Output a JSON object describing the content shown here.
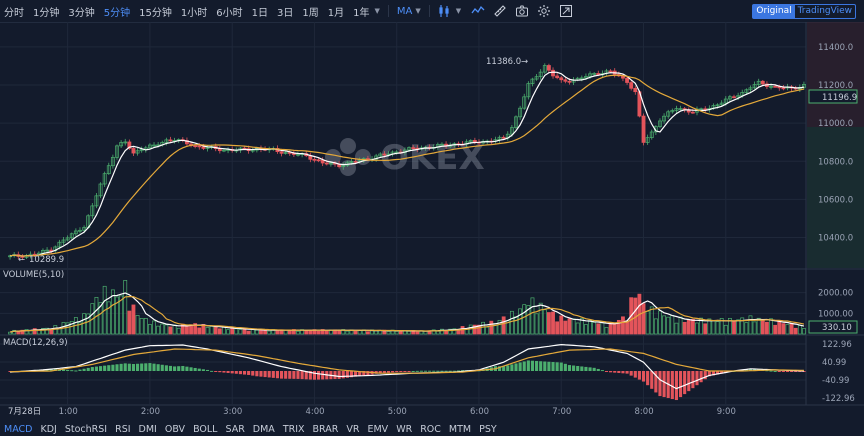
{
  "toolbar": {
    "timeframes": [
      "分时",
      "1分钟",
      "3分钟",
      "5分钟",
      "15分钟",
      "1小时",
      "6小时",
      "1日",
      "3日",
      "1周",
      "1月",
      "1年"
    ],
    "active_timeframe": "5分钟",
    "indicator_select": "MA",
    "view_options": [
      "Original",
      "TradingView"
    ],
    "active_view": "Original",
    "icons": [
      "chart-type-icon",
      "line-draw-icon",
      "ruler-icon",
      "camera-icon",
      "settings-icon",
      "fullscreen-icon"
    ]
  },
  "watermark": "OKEX",
  "panes": {
    "volume_label": "VOLUME(5,10)",
    "macd_label": "MACD(12,26,9)"
  },
  "annotations": {
    "high": "11386.0",
    "low": "10289.9",
    "last_price": "11196.9",
    "last_volume": "330.10"
  },
  "colors": {
    "up": "#4caf6e",
    "down": "#e3545b",
    "ma5": "#ffffff",
    "ma10": "#e4a93a",
    "accent": "#4d8ef7",
    "background": "#131b2c",
    "grid": "#1f283a"
  },
  "date_label": "7月28日",
  "bottom_indicators": [
    "MACD",
    "KDJ",
    "StochRSI",
    "RSI",
    "DMI",
    "OBV",
    "BOLL",
    "SAR",
    "DMA",
    "TRIX",
    "BRAR",
    "VR",
    "EMV",
    "WR",
    "ROC",
    "MTM",
    "PSY"
  ],
  "active_bottom_indicator": "MACD",
  "chart_data": {
    "type": "candlestick",
    "x_ticks": [
      "1:00",
      "2:00",
      "3:00",
      "4:00",
      "5:00",
      "6:00",
      "7:00",
      "8:00",
      "9:00"
    ],
    "price_axis": [
      11400.0,
      11200.0,
      11000.0,
      10800.0,
      10600.0,
      10400.0
    ],
    "price_range": [
      10240,
      11520
    ],
    "volume_axis": [
      2000.0,
      1000.0
    ],
    "volume_range": [
      0,
      3000
    ],
    "macd_axis": [
      122.96,
      40.99,
      -40.99,
      -122.96
    ],
    "macd_range": [
      -150,
      150
    ],
    "close_anchors": [
      [
        0,
        10300
      ],
      [
        6,
        10310
      ],
      [
        10,
        10340
      ],
      [
        14,
        10400
      ],
      [
        18,
        10460
      ],
      [
        20,
        10560
      ],
      [
        22,
        10680
      ],
      [
        24,
        10780
      ],
      [
        26,
        10880
      ],
      [
        28,
        10900
      ],
      [
        30,
        10840
      ],
      [
        32,
        10870
      ],
      [
        35,
        10880
      ],
      [
        38,
        10910
      ],
      [
        40,
        10915
      ],
      [
        42,
        10900
      ],
      [
        45,
        10880
      ],
      [
        48,
        10870
      ],
      [
        52,
        10860
      ],
      [
        56,
        10860
      ],
      [
        60,
        10865
      ],
      [
        64,
        10860
      ],
      [
        68,
        10840
      ],
      [
        72,
        10830
      ],
      [
        76,
        10790
      ],
      [
        80,
        10780
      ],
      [
        84,
        10800
      ],
      [
        88,
        10820
      ],
      [
        92,
        10840
      ],
      [
        96,
        10860
      ],
      [
        100,
        10870
      ],
      [
        104,
        10880
      ],
      [
        108,
        10890
      ],
      [
        112,
        10900
      ],
      [
        116,
        10905
      ],
      [
        120,
        10920
      ],
      [
        122,
        10980
      ],
      [
        124,
        11080
      ],
      [
        126,
        11200
      ],
      [
        128,
        11250
      ],
      [
        130,
        11300
      ],
      [
        132,
        11250
      ],
      [
        134,
        11220
      ],
      [
        138,
        11230
      ],
      [
        142,
        11260
      ],
      [
        146,
        11270
      ],
      [
        150,
        11220
      ],
      [
        152,
        11160
      ],
      [
        154,
        10900
      ],
      [
        156,
        10950
      ],
      [
        158,
        11020
      ],
      [
        162,
        11080
      ],
      [
        166,
        11060
      ],
      [
        170,
        11080
      ],
      [
        174,
        11120
      ],
      [
        178,
        11160
      ],
      [
        180,
        11190
      ],
      [
        182,
        11210
      ],
      [
        186,
        11190
      ],
      [
        190,
        11180
      ],
      [
        193,
        11200
      ]
    ],
    "volume_anchors": [
      [
        0,
        150
      ],
      [
        10,
        300
      ],
      [
        14,
        600
      ],
      [
        18,
        900
      ],
      [
        20,
        1500
      ],
      [
        22,
        2000
      ],
      [
        24,
        2200
      ],
      [
        26,
        1900
      ],
      [
        28,
        2400
      ],
      [
        30,
        1300
      ],
      [
        32,
        800
      ],
      [
        36,
        500
      ],
      [
        40,
        400
      ],
      [
        44,
        500
      ],
      [
        50,
        350
      ],
      [
        56,
        250
      ],
      [
        62,
        200
      ],
      [
        70,
        200
      ],
      [
        80,
        200
      ],
      [
        90,
        180
      ],
      [
        100,
        150
      ],
      [
        108,
        250
      ],
      [
        114,
        500
      ],
      [
        118,
        600
      ],
      [
        122,
        1000
      ],
      [
        124,
        1200
      ],
      [
        126,
        1700
      ],
      [
        128,
        1500
      ],
      [
        130,
        1300
      ],
      [
        132,
        1000
      ],
      [
        134,
        800
      ],
      [
        138,
        700
      ],
      [
        142,
        600
      ],
      [
        146,
        500
      ],
      [
        150,
        900
      ],
      [
        152,
        2300
      ],
      [
        154,
        1500
      ],
      [
        156,
        1200
      ],
      [
        160,
        900
      ],
      [
        164,
        700
      ],
      [
        170,
        700
      ],
      [
        176,
        700
      ],
      [
        180,
        800
      ],
      [
        186,
        650
      ],
      [
        193,
        330
      ]
    ],
    "macd_anchors": [
      [
        0,
        -5
      ],
      [
        8,
        5
      ],
      [
        16,
        20
      ],
      [
        24,
        70
      ],
      [
        28,
        95
      ],
      [
        34,
        115
      ],
      [
        42,
        118
      ],
      [
        48,
        100
      ],
      [
        58,
        60
      ],
      [
        66,
        20
      ],
      [
        74,
        -10
      ],
      [
        80,
        -25
      ],
      [
        88,
        -20
      ],
      [
        98,
        -10
      ],
      [
        108,
        -5
      ],
      [
        114,
        5
      ],
      [
        120,
        40
      ],
      [
        126,
        100
      ],
      [
        134,
        120
      ],
      [
        142,
        110
      ],
      [
        150,
        80
      ],
      [
        154,
        40
      ],
      [
        158,
        -40
      ],
      [
        162,
        -80
      ],
      [
        166,
        -50
      ],
      [
        170,
        -20
      ],
      [
        176,
        0
      ],
      [
        180,
        10
      ],
      [
        186,
        5
      ],
      [
        193,
        0
      ]
    ],
    "macd_signal_anchors": [
      [
        0,
        -3
      ],
      [
        10,
        0
      ],
      [
        20,
        30
      ],
      [
        30,
        75
      ],
      [
        40,
        100
      ],
      [
        50,
        95
      ],
      [
        60,
        70
      ],
      [
        70,
        35
      ],
      [
        80,
        5
      ],
      [
        90,
        -10
      ],
      [
        100,
        -10
      ],
      [
        110,
        -5
      ],
      [
        118,
        10
      ],
      [
        126,
        60
      ],
      [
        136,
        95
      ],
      [
        146,
        100
      ],
      [
        154,
        80
      ],
      [
        162,
        30
      ],
      [
        170,
        0
      ],
      [
        178,
        0
      ],
      [
        186,
        5
      ],
      [
        193,
        3
      ]
    ],
    "candle_count": 194
  }
}
